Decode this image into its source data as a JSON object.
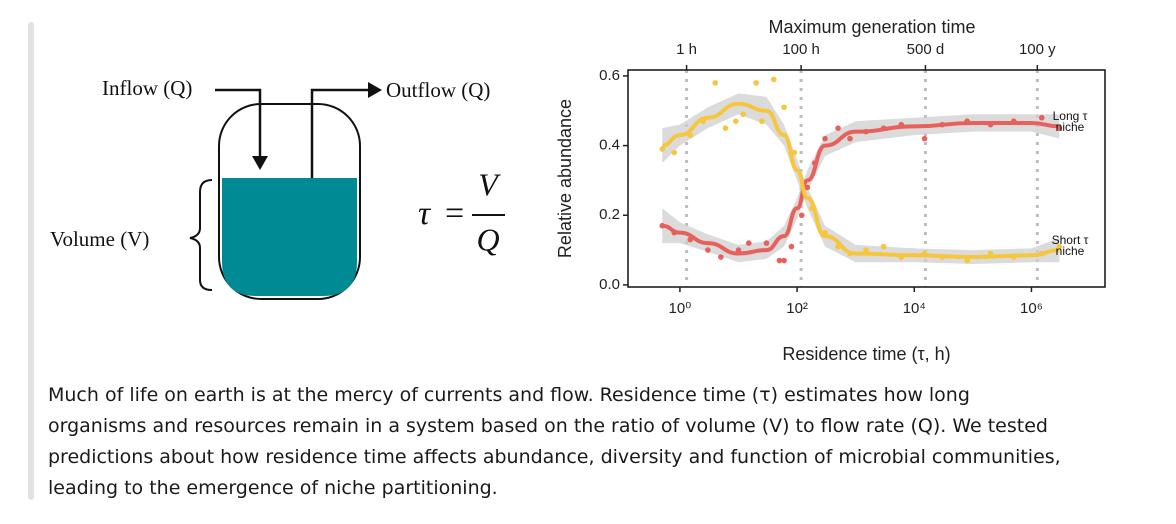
{
  "diagram": {
    "inflow": "Inflow (Q)",
    "outflow": "Outflow (Q)",
    "volume": "Volume (V)",
    "equation": {
      "lhs": "τ",
      "equals": "=",
      "numerator": "V",
      "denominator": "Q"
    }
  },
  "chart_data": {
    "type": "scatter-smooth",
    "ylabel": "Relative abundance",
    "xlabel": "Residence time (τ, h)",
    "x2label": "Maximum generation time",
    "xscale": "log",
    "xlim": [
      0.13,
      18000000
    ],
    "ylim": [
      -0.006,
      0.617
    ],
    "xticks": [
      {
        "value": 1,
        "label": "10⁰"
      },
      {
        "value": 100,
        "label": "10²"
      },
      {
        "value": 10000,
        "label": "10⁴"
      },
      {
        "value": 1000000,
        "label": "10⁶"
      }
    ],
    "x2ticks": [
      {
        "value": 1.3,
        "label": "1 h"
      },
      {
        "value": 117,
        "label": "100 h"
      },
      {
        "value": 15500,
        "label": "500 d"
      },
      {
        "value": 1260000,
        "label": "100 y"
      }
    ],
    "x2grid": true,
    "yticks": [
      {
        "value": 0,
        "label": "0.0"
      },
      0.2,
      0.4,
      0.6
    ],
    "ribbon_color": "#cfcfcf",
    "series": [
      {
        "name": "Long τ niche",
        "color": "#e8605b",
        "x": [
          0.5,
          0.8,
          1.5,
          3,
          5,
          10,
          15,
          30,
          50,
          60,
          80,
          120,
          150,
          200,
          300,
          500,
          800,
          1500,
          3000,
          6000,
          15000,
          30000,
          80000,
          200000,
          500000,
          1500000,
          3000000
        ],
        "values": [
          0.17,
          0.15,
          0.13,
          0.1,
          0.08,
          0.1,
          0.12,
          0.12,
          0.07,
          0.07,
          0.11,
          0.2,
          0.28,
          0.35,
          0.42,
          0.45,
          0.42,
          0.44,
          0.45,
          0.46,
          0.42,
          0.46,
          0.47,
          0.46,
          0.47,
          0.48,
          0.45
        ],
        "fit": {
          "x": [
            0.5,
            1,
            3,
            10,
            30,
            60,
            100,
            150,
            300,
            1000,
            10000,
            100000,
            1000000,
            3000000
          ],
          "values": [
            0.17,
            0.15,
            0.12,
            0.09,
            0.1,
            0.14,
            0.22,
            0.3,
            0.4,
            0.44,
            0.455,
            0.465,
            0.465,
            0.455
          ],
          "lower": [
            0.12,
            0.12,
            0.095,
            0.065,
            0.075,
            0.11,
            0.19,
            0.27,
            0.37,
            0.41,
            0.43,
            0.44,
            0.44,
            0.42
          ],
          "upper": [
            0.22,
            0.18,
            0.145,
            0.115,
            0.125,
            0.17,
            0.25,
            0.33,
            0.43,
            0.47,
            0.48,
            0.49,
            0.49,
            0.49
          ]
        }
      },
      {
        "name": "Short τ niche",
        "color": "#f6c63c",
        "x": [
          0.5,
          0.8,
          1.5,
          2.5,
          4,
          6,
          9,
          12,
          20,
          25,
          40,
          60,
          90,
          130,
          180,
          300,
          500,
          800,
          1500,
          3000,
          6000,
          15000,
          30000,
          80000,
          200000,
          500000,
          1500000,
          3000000
        ],
        "values": [
          0.39,
          0.38,
          0.43,
          0.47,
          0.58,
          0.45,
          0.47,
          0.49,
          0.58,
          0.47,
          0.59,
          0.51,
          0.38,
          0.26,
          0.22,
          0.15,
          0.11,
          0.09,
          0.1,
          0.11,
          0.08,
          0.09,
          0.08,
          0.07,
          0.09,
          0.08,
          0.09,
          0.11
        ],
        "fit": {
          "x": [
            0.5,
            1,
            3,
            10,
            30,
            60,
            100,
            150,
            300,
            1000,
            10000,
            100000,
            1000000,
            3000000
          ],
          "values": [
            0.4,
            0.43,
            0.48,
            0.52,
            0.5,
            0.43,
            0.33,
            0.25,
            0.14,
            0.09,
            0.085,
            0.08,
            0.085,
            0.1
          ],
          "lower": [
            0.35,
            0.4,
            0.45,
            0.49,
            0.46,
            0.4,
            0.3,
            0.22,
            0.11,
            0.065,
            0.065,
            0.06,
            0.065,
            0.065
          ],
          "upper": [
            0.45,
            0.46,
            0.51,
            0.55,
            0.54,
            0.46,
            0.36,
            0.28,
            0.17,
            0.115,
            0.105,
            0.1,
            0.105,
            0.135
          ]
        }
      }
    ]
  },
  "caption": {
    "lines": [
      "Much of life on earth is at the mercy of currents and flow. Residence time (τ) estimates how long",
      "organisms and resources remain in a system based on the ratio of volume (V) to flow rate (Q). We tested",
      "predictions about how residence time affects abundance, diversity and function of microbial communities,",
      "leading to the emergence of niche partitioning."
    ]
  }
}
